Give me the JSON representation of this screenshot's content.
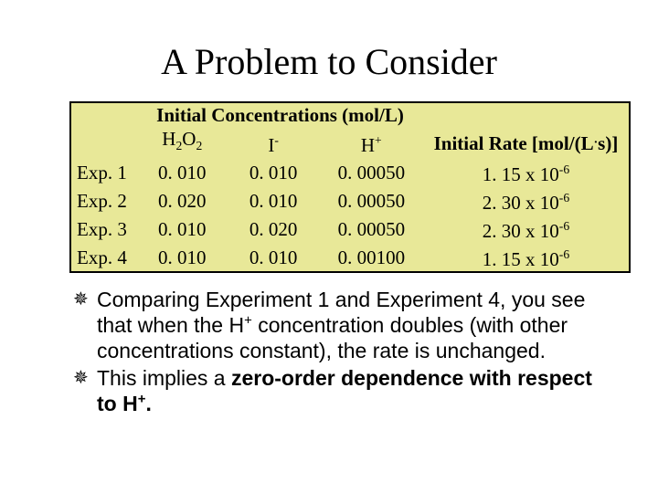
{
  "title": "A Problem to Consider",
  "table": {
    "background_color": "#e8e898",
    "border_color": "#000000",
    "group_header": "Initial Concentrations (mol/L)",
    "rate_header_plain": "Initial Rate [mol/(L",
    "rate_header_dot": "·",
    "rate_header_tail": "s)]",
    "col_h2o2_base": "H",
    "col_h2o2_s1": "2",
    "col_h2o2_mid": "O",
    "col_h2o2_s2": "2",
    "col_i_base": "I",
    "col_i_sup": "-",
    "col_h_base": "H",
    "col_h_sup": "+",
    "rows": [
      {
        "label": "Exp. 1",
        "h2o2": "0. 010",
        "i": "0. 010",
        "h": "0. 00050",
        "rate_pre": "1. 15 x 10",
        "rate_exp": "-6"
      },
      {
        "label": "Exp. 2",
        "h2o2": "0. 020",
        "i": "0. 010",
        "h": "0. 00050",
        "rate_pre": "2. 30 x 10",
        "rate_exp": "-6"
      },
      {
        "label": "Exp. 3",
        "h2o2": "0. 010",
        "i": "0. 020",
        "h": "0. 00050",
        "rate_pre": "2. 30 x 10",
        "rate_exp": "-6"
      },
      {
        "label": "Exp. 4",
        "h2o2": "0. 010",
        "i": "0. 010",
        "h": "0. 00100",
        "rate_pre": "1. 15 x 10",
        "rate_exp": "-6"
      }
    ]
  },
  "bullets": {
    "b1_a": "Comparing Experiment 1 and Experiment 4, you see that when the H",
    "b1_sup": "+",
    "b1_b": " concentration doubles (with other concentrations constant), the rate is unchanged.",
    "b2_a": "This implies a ",
    "b2_bold_a": "zero-order dependence with respect to H",
    "b2_bold_sup": "+",
    "b2_bold_b": "."
  },
  "style": {
    "title_fontsize": 40,
    "table_fontsize": 21,
    "body_fontsize": 23,
    "body_font": "Arial",
    "title_font": "Times New Roman"
  }
}
